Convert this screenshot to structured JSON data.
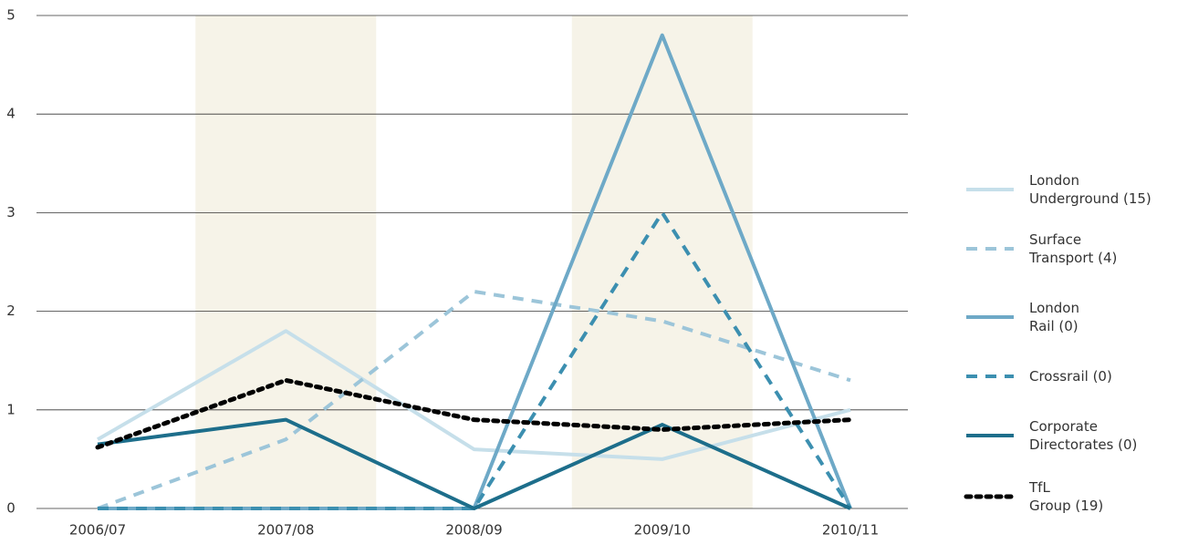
{
  "chart_data": {
    "type": "line",
    "categories": [
      "2006/07",
      "2007/08",
      "2008/09",
      "2009/10",
      "2010/11"
    ],
    "series": [
      {
        "name": "London\nUnderground (15)",
        "color": "#c6dfea",
        "dash": "solid",
        "values": [
          0.7,
          1.8,
          0.6,
          0.5,
          1.0
        ]
      },
      {
        "name": "Surface\nTransport (4)",
        "color": "#9cc5d9",
        "dash": "dashed",
        "values": [
          0,
          0.7,
          2.2,
          1.9,
          1.3
        ]
      },
      {
        "name": "London\nRail (0)",
        "color": "#6ea9c7",
        "dash": "solid",
        "values": [
          0,
          0,
          0,
          4.8,
          0
        ]
      },
      {
        "name": "Crossrail (0)",
        "color": "#3c8fb0",
        "dash": "dashed",
        "values": [
          0,
          0,
          0,
          3.0,
          0
        ]
      },
      {
        "name": "Corporate\nDirectorates (0)",
        "color": "#1d6e8b",
        "dash": "solid",
        "values": [
          0.65,
          0.9,
          0,
          0.85,
          0
        ]
      },
      {
        "name": "TfL\nGroup (19)",
        "color": "#000000",
        "dash": "dotted",
        "values": [
          0.62,
          1.3,
          0.9,
          0.8,
          0.9
        ]
      }
    ],
    "ylim": [
      0,
      5
    ],
    "yticks": [
      0,
      1,
      2,
      3,
      4,
      5
    ],
    "grid": true,
    "shaded_categories": [
      1,
      3
    ],
    "shade_color": "#f6f3e8",
    "legend": "right"
  }
}
